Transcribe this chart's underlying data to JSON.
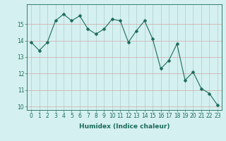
{
  "x": [
    0,
    1,
    2,
    3,
    4,
    5,
    6,
    7,
    8,
    9,
    10,
    11,
    12,
    13,
    14,
    15,
    16,
    17,
    18,
    19,
    20,
    21,
    22,
    23
  ],
  "y": [
    13.9,
    13.4,
    13.9,
    15.2,
    15.6,
    15.2,
    15.5,
    14.7,
    14.4,
    14.7,
    15.3,
    15.2,
    13.9,
    14.6,
    15.2,
    14.1,
    12.3,
    12.8,
    13.8,
    11.6,
    12.1,
    11.1,
    10.8,
    10.1
  ],
  "line_color": "#1a6b5a",
  "marker": "D",
  "marker_size": 2.5,
  "bg_color": "#d5f0f0",
  "grid_color": "#b8d4d4",
  "grid_color_major": "#c8a0a0",
  "xlabel": "Humidex (Indice chaleur)",
  "ylim": [
    9.8,
    16.2
  ],
  "xlim": [
    -0.5,
    23.5
  ],
  "yticks": [
    10,
    11,
    12,
    13,
    14,
    15
  ],
  "xticks": [
    0,
    1,
    2,
    3,
    4,
    5,
    6,
    7,
    8,
    9,
    10,
    11,
    12,
    13,
    14,
    15,
    16,
    17,
    18,
    19,
    20,
    21,
    22,
    23
  ],
  "xlabel_fontsize": 6.5,
  "tick_fontsize": 5.5
}
